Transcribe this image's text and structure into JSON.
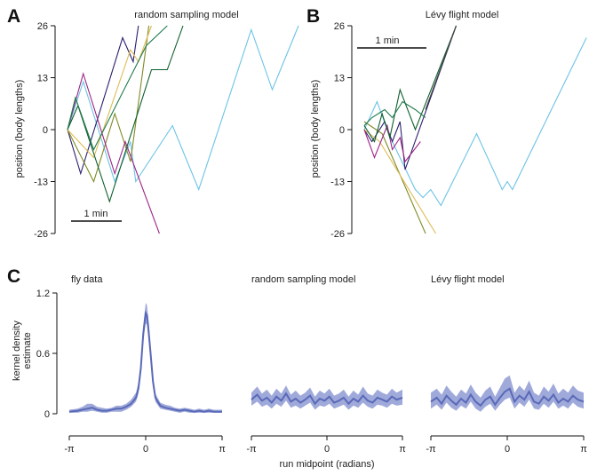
{
  "figure": {
    "panel_letters": [
      "A",
      "B",
      "C"
    ]
  },
  "chart_data": [
    {
      "panel": "A",
      "type": "line",
      "title": "random sampling model",
      "ylabel": "position (body lengths)",
      "xlabel": "",
      "yticks": [
        26,
        13,
        0,
        -13,
        -26
      ],
      "ylim": [
        -26,
        26
      ],
      "xlim": [
        0,
        4.4
      ],
      "scale_bar": "1 min",
      "grid": false,
      "series": [
        {
          "color": "#6cc3e5",
          "points": [
            [
              0,
              0
            ],
            [
              0.3,
              12
            ],
            [
              0.9,
              -13
            ],
            [
              1.2,
              -3
            ],
            [
              1.3,
              -13
            ],
            [
              2.0,
              1
            ],
            [
              2.5,
              -15
            ],
            [
              3.5,
              25
            ],
            [
              3.9,
              10
            ],
            [
              4.4,
              26
            ]
          ]
        },
        {
          "color": "#2b1f6e",
          "points": [
            [
              0,
              0
            ],
            [
              0.25,
              -11
            ],
            [
              1.05,
              23
            ],
            [
              1.25,
              17
            ],
            [
              1.35,
              26
            ]
          ]
        },
        {
          "color": "#7f8a26",
          "points": [
            [
              0,
              0
            ],
            [
              0.5,
              -13
            ],
            [
              0.9,
              4
            ],
            [
              1.2,
              -8
            ],
            [
              1.55,
              26
            ]
          ]
        },
        {
          "color": "#dfbb55",
          "points": [
            [
              0,
              0
            ],
            [
              0.5,
              -7
            ],
            [
              1.2,
              20
            ],
            [
              1.35,
              17
            ],
            [
              1.6,
              26
            ]
          ]
        },
        {
          "color": "#9c2585",
          "points": [
            [
              0,
              0
            ],
            [
              0.3,
              14
            ],
            [
              0.9,
              -11
            ],
            [
              1.1,
              -3
            ],
            [
              1.75,
              -26
            ]
          ]
        },
        {
          "color": "#0f5e2c",
          "points": [
            [
              0,
              0
            ],
            [
              0.2,
              6
            ],
            [
              0.8,
              -18
            ],
            [
              1.6,
              15
            ],
            [
              1.9,
              15
            ],
            [
              2.2,
              26
            ]
          ]
        },
        {
          "color": "#1f7a4c",
          "points": [
            [
              0,
              0
            ],
            [
              0.15,
              8
            ],
            [
              0.5,
              -5
            ],
            [
              1.5,
              21
            ],
            [
              1.9,
              26
            ]
          ]
        }
      ]
    },
    {
      "panel": "B",
      "type": "line",
      "title": "Lévy flight model",
      "ylabel": "position (body lengths)",
      "xlabel": "",
      "yticks": [
        26,
        13,
        0,
        -13,
        -26
      ],
      "ylim": [
        -26,
        26
      ],
      "xlim": [
        0,
        4.4
      ],
      "scale_bar": "1 min",
      "grid": false,
      "series": [
        {
          "color": "#6cc3e5",
          "points": [
            [
              0,
              0
            ],
            [
              0.25,
              7
            ],
            [
              0.45,
              0
            ],
            [
              0.55,
              -3
            ],
            [
              1.0,
              -15
            ],
            [
              1.15,
              -17
            ],
            [
              1.3,
              -15
            ],
            [
              1.5,
              -19
            ],
            [
              2.2,
              -1
            ],
            [
              2.7,
              -15
            ],
            [
              2.8,
              -13
            ],
            [
              2.9,
              -15
            ],
            [
              4.35,
              23
            ]
          ]
        },
        {
          "color": "#2b1f6e",
          "points": [
            [
              0,
              0
            ],
            [
              0.15,
              -3
            ],
            [
              0.4,
              2
            ],
            [
              0.55,
              -3
            ],
            [
              0.7,
              2
            ],
            [
              0.8,
              -10
            ],
            [
              1.8,
              26
            ]
          ]
        },
        {
          "color": "#7f8a26",
          "points": [
            [
              0,
              2
            ],
            [
              0.35,
              -1
            ],
            [
              1.2,
              -26
            ]
          ]
        },
        {
          "color": "#dfbb55",
          "points": [
            [
              0,
              0
            ],
            [
              0.3,
              -3
            ],
            [
              1.4,
              -26
            ]
          ]
        },
        {
          "color": "#9c2585",
          "points": [
            [
              0,
              0
            ],
            [
              0.2,
              -7
            ],
            [
              0.45,
              1
            ],
            [
              0.55,
              -5
            ],
            [
              0.7,
              -2
            ],
            [
              0.8,
              -8
            ],
            [
              1.1,
              -3
            ]
          ]
        },
        {
          "color": "#0f5e2c",
          "points": [
            [
              0,
              1
            ],
            [
              0.2,
              -3
            ],
            [
              0.35,
              4
            ],
            [
              0.5,
              -2
            ],
            [
              0.7,
              10
            ],
            [
              1.0,
              0
            ],
            [
              1.8,
              26
            ]
          ]
        },
        {
          "color": "#1f7a4c",
          "points": [
            [
              0,
              1
            ],
            [
              0.15,
              3
            ],
            [
              0.4,
              5
            ],
            [
              0.55,
              3
            ],
            [
              0.75,
              7
            ],
            [
              1.0,
              5
            ],
            [
              1.2,
              3
            ]
          ]
        },
        {
          "color": "#444444",
          "points": [
            [
              1.2,
              5
            ],
            [
              1.8,
              26
            ]
          ]
        }
      ]
    },
    {
      "panel": "C1",
      "type": "area",
      "title": "fly data",
      "ylabel": "kernel density estimate",
      "xlabel": "",
      "yticks": [
        "1.2",
        "0.6",
        "0"
      ],
      "xticks": [
        "-π",
        "0",
        "π"
      ],
      "ylim": [
        0,
        1.2
      ],
      "xlim": [
        -3.1416,
        3.1416
      ],
      "fill_color": "#8e9bd3",
      "line_color": "#5a69b8",
      "series": [
        {
          "x": [
            -3.14,
            -2.8,
            -2.6,
            -2.4,
            -2.2,
            -2.0,
            -1.8,
            -1.6,
            -1.4,
            -1.2,
            -1.0,
            -0.8,
            -0.6,
            -0.4,
            -0.3,
            -0.2,
            -0.1,
            0.0,
            0.05,
            0.1,
            0.2,
            0.3,
            0.4,
            0.6,
            0.8,
            1.0,
            1.2,
            1.4,
            1.6,
            1.8,
            2.0,
            2.2,
            2.4,
            2.6,
            2.8,
            3.14
          ],
          "mean": [
            0.02,
            0.03,
            0.04,
            0.05,
            0.06,
            0.04,
            0.03,
            0.03,
            0.04,
            0.05,
            0.05,
            0.07,
            0.1,
            0.16,
            0.25,
            0.45,
            0.8,
            1.0,
            0.98,
            0.88,
            0.6,
            0.32,
            0.16,
            0.08,
            0.06,
            0.05,
            0.04,
            0.03,
            0.04,
            0.03,
            0.02,
            0.03,
            0.02,
            0.03,
            0.02,
            0.02
          ],
          "lower": [
            0.01,
            0.01,
            0.02,
            0.02,
            0.03,
            0.02,
            0.01,
            0.01,
            0.02,
            0.02,
            0.02,
            0.04,
            0.07,
            0.12,
            0.2,
            0.38,
            0.72,
            0.9,
            0.88,
            0.78,
            0.52,
            0.27,
            0.12,
            0.05,
            0.04,
            0.03,
            0.02,
            0.01,
            0.02,
            0.01,
            0.01,
            0.01,
            0.01,
            0.01,
            0.01,
            0.01
          ],
          "upper": [
            0.04,
            0.05,
            0.07,
            0.1,
            0.1,
            0.07,
            0.06,
            0.05,
            0.06,
            0.08,
            0.08,
            0.1,
            0.14,
            0.21,
            0.31,
            0.52,
            0.88,
            1.1,
            1.08,
            0.97,
            0.68,
            0.37,
            0.2,
            0.11,
            0.09,
            0.08,
            0.06,
            0.05,
            0.06,
            0.05,
            0.04,
            0.05,
            0.04,
            0.05,
            0.04,
            0.04
          ]
        }
      ]
    },
    {
      "panel": "C2",
      "type": "area",
      "title": "random sampling model",
      "ylabel": "",
      "xlabel": "run midpoint (radians)",
      "xticks": [
        "-π",
        "0",
        "π"
      ],
      "ylim": [
        0,
        1.2
      ],
      "xlim": [
        -3.1416,
        3.1416
      ],
      "fill_color": "#8e9bd3",
      "line_color": "#5a69b8",
      "series": [
        {
          "x": [
            -3.14,
            -2.9,
            -2.7,
            -2.5,
            -2.3,
            -2.1,
            -1.9,
            -1.7,
            -1.5,
            -1.3,
            -1.1,
            -0.9,
            -0.7,
            -0.5,
            -0.3,
            -0.1,
            0.1,
            0.3,
            0.5,
            0.7,
            0.9,
            1.1,
            1.3,
            1.5,
            1.7,
            1.9,
            2.1,
            2.3,
            2.5,
            2.7,
            2.9,
            3.14
          ],
          "mean": [
            0.14,
            0.19,
            0.13,
            0.16,
            0.11,
            0.17,
            0.13,
            0.2,
            0.12,
            0.15,
            0.11,
            0.14,
            0.18,
            0.1,
            0.15,
            0.13,
            0.17,
            0.11,
            0.13,
            0.16,
            0.1,
            0.15,
            0.12,
            0.18,
            0.13,
            0.11,
            0.16,
            0.14,
            0.12,
            0.17,
            0.14,
            0.16
          ],
          "lower": [
            0.08,
            0.12,
            0.07,
            0.09,
            0.05,
            0.1,
            0.07,
            0.13,
            0.06,
            0.08,
            0.05,
            0.08,
            0.11,
            0.04,
            0.08,
            0.07,
            0.1,
            0.05,
            0.07,
            0.09,
            0.04,
            0.08,
            0.06,
            0.11,
            0.07,
            0.05,
            0.09,
            0.08,
            0.06,
            0.1,
            0.08,
            0.09
          ],
          "upper": [
            0.21,
            0.27,
            0.2,
            0.24,
            0.18,
            0.25,
            0.2,
            0.28,
            0.19,
            0.23,
            0.18,
            0.21,
            0.26,
            0.17,
            0.23,
            0.2,
            0.25,
            0.18,
            0.2,
            0.24,
            0.17,
            0.23,
            0.19,
            0.27,
            0.2,
            0.18,
            0.24,
            0.21,
            0.19,
            0.25,
            0.21,
            0.24
          ]
        }
      ]
    },
    {
      "panel": "C3",
      "type": "area",
      "title": "Lévy flight model",
      "ylabel": "",
      "xlabel": "",
      "xticks": [
        "-π",
        "0",
        "π"
      ],
      "ylim": [
        0,
        1.2
      ],
      "xlim": [
        -3.1416,
        3.1416
      ],
      "fill_color": "#8e9bd3",
      "line_color": "#5a69b8",
      "series": [
        {
          "x": [
            -3.14,
            -2.9,
            -2.7,
            -2.5,
            -2.3,
            -2.1,
            -1.9,
            -1.7,
            -1.5,
            -1.3,
            -1.1,
            -0.9,
            -0.7,
            -0.5,
            -0.3,
            -0.1,
            0.1,
            0.3,
            0.5,
            0.7,
            0.9,
            1.1,
            1.3,
            1.5,
            1.7,
            1.9,
            2.1,
            2.3,
            2.5,
            2.7,
            2.9,
            3.14
          ],
          "mean": [
            0.12,
            0.16,
            0.1,
            0.18,
            0.13,
            0.09,
            0.15,
            0.11,
            0.19,
            0.12,
            0.08,
            0.14,
            0.17,
            0.09,
            0.16,
            0.22,
            0.25,
            0.12,
            0.18,
            0.14,
            0.22,
            0.12,
            0.1,
            0.17,
            0.13,
            0.19,
            0.11,
            0.15,
            0.12,
            0.18,
            0.14,
            0.12
          ],
          "lower": [
            0.05,
            0.09,
            0.04,
            0.11,
            0.06,
            0.03,
            0.08,
            0.05,
            0.12,
            0.05,
            0.02,
            0.07,
            0.1,
            0.03,
            0.09,
            0.14,
            0.16,
            0.05,
            0.11,
            0.07,
            0.14,
            0.05,
            0.04,
            0.1,
            0.06,
            0.12,
            0.05,
            0.08,
            0.05,
            0.11,
            0.07,
            0.05
          ],
          "upper": [
            0.21,
            0.25,
            0.19,
            0.28,
            0.22,
            0.17,
            0.24,
            0.2,
            0.29,
            0.21,
            0.16,
            0.23,
            0.27,
            0.17,
            0.26,
            0.35,
            0.38,
            0.21,
            0.28,
            0.23,
            0.33,
            0.21,
            0.18,
            0.27,
            0.22,
            0.3,
            0.2,
            0.25,
            0.21,
            0.28,
            0.23,
            0.21
          ]
        }
      ]
    }
  ]
}
